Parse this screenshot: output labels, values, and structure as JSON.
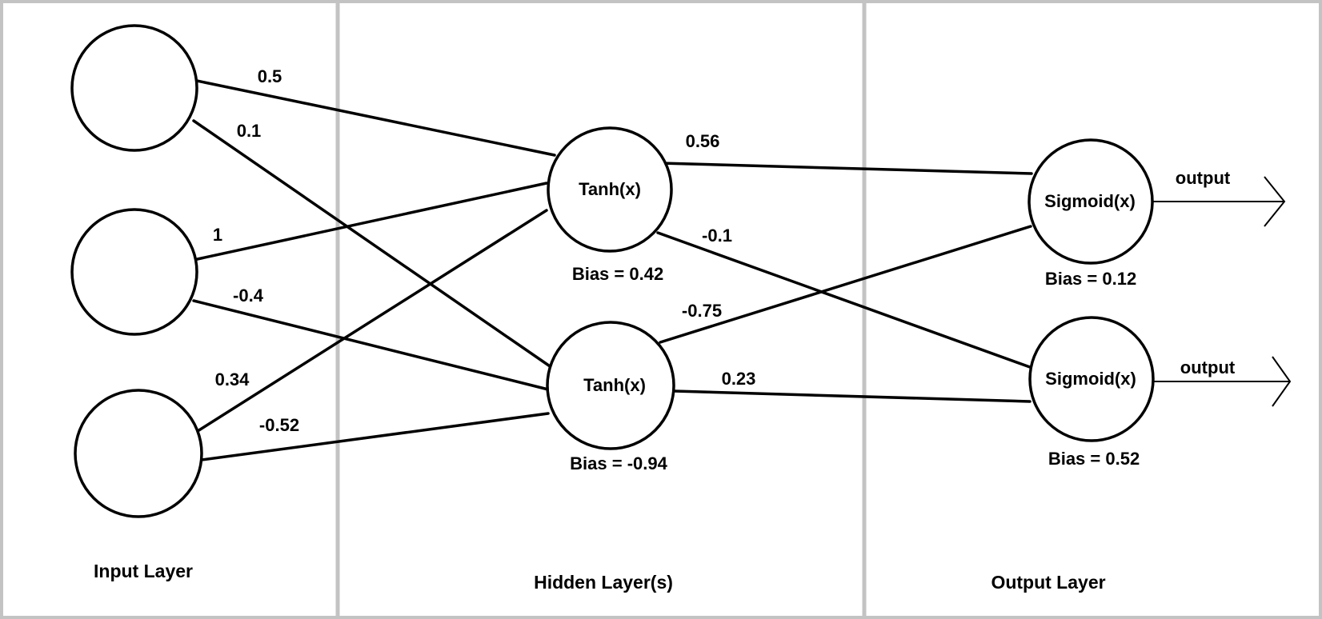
{
  "colors": {
    "border": "#c3c3c3",
    "stroke": "#000000",
    "background": "#ffffff"
  },
  "layers": {
    "input": "Input Layer",
    "hidden": "Hidden Layer(s)",
    "output": "Output Layer"
  },
  "nodes": {
    "input_1": "",
    "input_2": "",
    "input_3": "",
    "hidden_1": "Tanh(x)",
    "hidden_2": "Tanh(x)",
    "output_1": "Sigmoid(x)",
    "output_2": "Sigmoid(x)"
  },
  "biases": {
    "hidden_1": "Bias = 0.42",
    "hidden_2": "Bias = -0.94",
    "output_1": "Bias = 0.12",
    "output_2": "Bias = 0.52"
  },
  "weights": {
    "i1_h1": "0.5",
    "i1_h2": "0.1",
    "i2_h1": "1",
    "i2_h2": "-0.4",
    "i3_h1": "0.34",
    "i3_h2": "-0.52",
    "h1_o1": "0.56",
    "h1_o2": "-0.1",
    "h2_o1": "-0.75",
    "h2_o2": "0.23"
  },
  "outputs": {
    "o1": "output",
    "o2": "output"
  }
}
